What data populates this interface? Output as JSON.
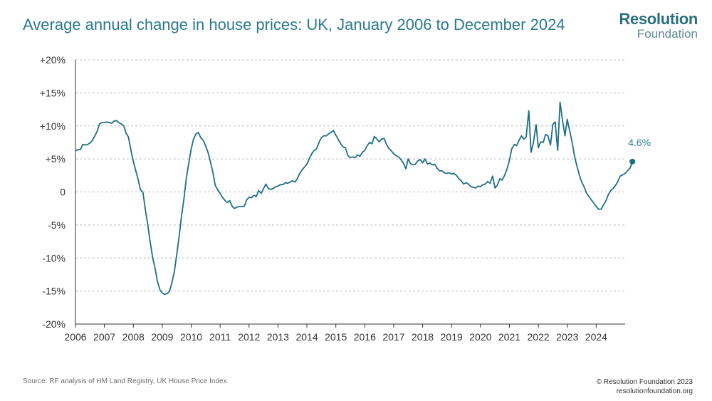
{
  "header": {
    "title": "Average annual change in house prices: UK, January 2006 to December 2024",
    "logo_top": "Resolution",
    "logo_bottom": "Foundation"
  },
  "footer": {
    "source": "Source: RF analysis of HM Land Registry, UK House Price Index.",
    "copyright": "© Resolution Foundation 2023",
    "website": "resolutionfoundation.org"
  },
  "colors": {
    "line": "#1e6f84",
    "grid": "#bdbdbd",
    "axis": "#333333",
    "title": "#2a7a8c"
  },
  "chart_data": {
    "type": "line",
    "title": "Average annual change in house prices: UK, January 2006 to December 2024",
    "xlabel": "",
    "ylabel": "",
    "ylim": [
      -20,
      20
    ],
    "xlim": [
      2006,
      2025
    ],
    "yticks": [
      20,
      15,
      10,
      5,
      0,
      -5,
      -10,
      -15,
      -20
    ],
    "ytick_labels": [
      "+20%",
      "+15%",
      "+10%",
      "+5%",
      "0",
      "-5%",
      "-10%",
      "-15%",
      "-20%"
    ],
    "xtick_labels": [
      "2006",
      "2007",
      "2008",
      "2009",
      "2010",
      "2011",
      "2012",
      "2013",
      "2014",
      "2015",
      "2016",
      "2017",
      "2018",
      "2019",
      "2020",
      "2021",
      "2022",
      "2023",
      "2024"
    ],
    "grid": "horizontal-dashed",
    "end_label": "4.6%",
    "series": [
      {
        "name": "Annual change in UK house prices (%)",
        "points": [
          [
            2006.0,
            6.2
          ],
          [
            2006.08,
            6.4
          ],
          [
            2006.17,
            6.4
          ],
          [
            2006.25,
            7.2
          ],
          [
            2006.33,
            7.1
          ],
          [
            2006.42,
            7.2
          ],
          [
            2006.5,
            7.4
          ],
          [
            2006.58,
            7.8
          ],
          [
            2006.67,
            8.5
          ],
          [
            2006.75,
            9.2
          ],
          [
            2006.83,
            10.3
          ],
          [
            2006.92,
            10.5
          ],
          [
            2007.0,
            10.5
          ],
          [
            2007.08,
            10.6
          ],
          [
            2007.17,
            10.5
          ],
          [
            2007.25,
            10.4
          ],
          [
            2007.33,
            10.7
          ],
          [
            2007.42,
            10.8
          ],
          [
            2007.5,
            10.5
          ],
          [
            2007.58,
            10.3
          ],
          [
            2007.67,
            10.0
          ],
          [
            2007.75,
            8.9
          ],
          [
            2007.83,
            8.3
          ],
          [
            2007.92,
            6.3
          ],
          [
            2008.0,
            4.6
          ],
          [
            2008.08,
            3.3
          ],
          [
            2008.17,
            1.8
          ],
          [
            2008.25,
            0.3
          ],
          [
            2008.33,
            0.0
          ],
          [
            2008.42,
            -2.8
          ],
          [
            2008.5,
            -5.0
          ],
          [
            2008.58,
            -7.5
          ],
          [
            2008.67,
            -10.0
          ],
          [
            2008.75,
            -11.5
          ],
          [
            2008.83,
            -13.5
          ],
          [
            2008.92,
            -14.8
          ],
          [
            2009.0,
            -15.3
          ],
          [
            2009.08,
            -15.5
          ],
          [
            2009.17,
            -15.4
          ],
          [
            2009.25,
            -15.0
          ],
          [
            2009.33,
            -13.8
          ],
          [
            2009.42,
            -12.0
          ],
          [
            2009.5,
            -9.5
          ],
          [
            2009.58,
            -6.8
          ],
          [
            2009.67,
            -3.5
          ],
          [
            2009.75,
            -1.0
          ],
          [
            2009.83,
            2.0
          ],
          [
            2009.92,
            4.5
          ],
          [
            2010.0,
            6.5
          ],
          [
            2010.08,
            8.0
          ],
          [
            2010.17,
            8.8
          ],
          [
            2010.25,
            9.0
          ],
          [
            2010.33,
            8.2
          ],
          [
            2010.42,
            7.8
          ],
          [
            2010.5,
            7.0
          ],
          [
            2010.58,
            6.0
          ],
          [
            2010.67,
            4.5
          ],
          [
            2010.75,
            3.0
          ],
          [
            2010.83,
            1.0
          ],
          [
            2010.92,
            0.3
          ],
          [
            2011.0,
            -0.2
          ],
          [
            2011.08,
            -0.8
          ],
          [
            2011.17,
            -1.3
          ],
          [
            2011.25,
            -1.6
          ],
          [
            2011.33,
            -1.3
          ],
          [
            2011.42,
            -2.2
          ],
          [
            2011.5,
            -2.5
          ],
          [
            2011.58,
            -2.3
          ],
          [
            2011.67,
            -2.2
          ],
          [
            2011.75,
            -2.2
          ],
          [
            2011.83,
            -2.2
          ],
          [
            2011.92,
            -1.2
          ],
          [
            2012.0,
            -0.8
          ],
          [
            2012.08,
            -0.9
          ],
          [
            2012.17,
            -0.5
          ],
          [
            2012.25,
            -0.7
          ],
          [
            2012.33,
            0.2
          ],
          [
            2012.42,
            -0.2
          ],
          [
            2012.5,
            0.5
          ],
          [
            2012.58,
            1.2
          ],
          [
            2012.67,
            0.5
          ],
          [
            2012.75,
            0.4
          ],
          [
            2012.83,
            0.5
          ],
          [
            2012.92,
            0.8
          ],
          [
            2013.0,
            0.9
          ],
          [
            2013.08,
            1.1
          ],
          [
            2013.17,
            1.1
          ],
          [
            2013.25,
            1.4
          ],
          [
            2013.33,
            1.3
          ],
          [
            2013.42,
            1.5
          ],
          [
            2013.5,
            1.7
          ],
          [
            2013.58,
            1.5
          ],
          [
            2013.67,
            2.0
          ],
          [
            2013.75,
            2.8
          ],
          [
            2013.83,
            3.3
          ],
          [
            2013.92,
            3.8
          ],
          [
            2014.0,
            4.2
          ],
          [
            2014.08,
            5.0
          ],
          [
            2014.17,
            5.8
          ],
          [
            2014.25,
            6.3
          ],
          [
            2014.33,
            6.5
          ],
          [
            2014.42,
            7.5
          ],
          [
            2014.5,
            8.2
          ],
          [
            2014.58,
            8.5
          ],
          [
            2014.67,
            8.5
          ],
          [
            2014.75,
            8.8
          ],
          [
            2014.83,
            9.0
          ],
          [
            2014.92,
            9.3
          ],
          [
            2015.0,
            8.6
          ],
          [
            2015.08,
            8.0
          ],
          [
            2015.17,
            7.3
          ],
          [
            2015.25,
            6.8
          ],
          [
            2015.33,
            6.7
          ],
          [
            2015.42,
            5.5
          ],
          [
            2015.5,
            5.2
          ],
          [
            2015.58,
            5.3
          ],
          [
            2015.67,
            5.2
          ],
          [
            2015.75,
            5.6
          ],
          [
            2015.83,
            5.4
          ],
          [
            2015.92,
            6.0
          ],
          [
            2016.0,
            6.3
          ],
          [
            2016.08,
            7.0
          ],
          [
            2016.17,
            7.5
          ],
          [
            2016.25,
            7.3
          ],
          [
            2016.33,
            8.4
          ],
          [
            2016.42,
            8.0
          ],
          [
            2016.5,
            7.6
          ],
          [
            2016.58,
            8.0
          ],
          [
            2016.67,
            8.1
          ],
          [
            2016.75,
            7.2
          ],
          [
            2016.83,
            6.6
          ],
          [
            2016.92,
            6.2
          ],
          [
            2017.0,
            5.8
          ],
          [
            2017.08,
            5.5
          ],
          [
            2017.17,
            5.3
          ],
          [
            2017.25,
            4.9
          ],
          [
            2017.33,
            4.4
          ],
          [
            2017.42,
            3.5
          ],
          [
            2017.5,
            5.0
          ],
          [
            2017.58,
            4.3
          ],
          [
            2017.67,
            4.1
          ],
          [
            2017.75,
            4.2
          ],
          [
            2017.83,
            4.7
          ],
          [
            2017.92,
            4.9
          ],
          [
            2018.0,
            4.4
          ],
          [
            2018.08,
            5.0
          ],
          [
            2018.17,
            4.2
          ],
          [
            2018.25,
            4.4
          ],
          [
            2018.33,
            4.1
          ],
          [
            2018.42,
            4.2
          ],
          [
            2018.5,
            3.6
          ],
          [
            2018.58,
            3.2
          ],
          [
            2018.67,
            3.2
          ],
          [
            2018.75,
            2.9
          ],
          [
            2018.83,
            2.8
          ],
          [
            2018.92,
            2.9
          ],
          [
            2019.0,
            2.7
          ],
          [
            2019.08,
            2.8
          ],
          [
            2019.17,
            2.5
          ],
          [
            2019.25,
            2.0
          ],
          [
            2019.33,
            1.7
          ],
          [
            2019.42,
            1.2
          ],
          [
            2019.5,
            1.4
          ],
          [
            2019.58,
            1.2
          ],
          [
            2019.67,
            0.8
          ],
          [
            2019.75,
            0.7
          ],
          [
            2019.83,
            0.6
          ],
          [
            2019.92,
            0.9
          ],
          [
            2020.0,
            0.8
          ],
          [
            2020.08,
            1.1
          ],
          [
            2020.17,
            1.2
          ],
          [
            2020.25,
            1.6
          ],
          [
            2020.33,
            1.3
          ],
          [
            2020.42,
            2.4
          ],
          [
            2020.5,
            0.6
          ],
          [
            2020.58,
            1.0
          ],
          [
            2020.67,
            2.0
          ],
          [
            2020.75,
            1.8
          ],
          [
            2020.83,
            2.5
          ],
          [
            2020.92,
            3.5
          ],
          [
            2021.0,
            4.8
          ],
          [
            2021.08,
            6.5
          ],
          [
            2021.17,
            7.2
          ],
          [
            2021.25,
            7.0
          ],
          [
            2021.33,
            7.8
          ],
          [
            2021.42,
            8.5
          ],
          [
            2021.5,
            8.0
          ],
          [
            2021.58,
            8.3
          ],
          [
            2021.67,
            12.3
          ],
          [
            2021.75,
            6.0
          ],
          [
            2021.83,
            7.5
          ],
          [
            2021.92,
            10.2
          ],
          [
            2022.0,
            6.7
          ],
          [
            2022.08,
            7.6
          ],
          [
            2022.17,
            7.5
          ],
          [
            2022.25,
            8.7
          ],
          [
            2022.33,
            8.5
          ],
          [
            2022.42,
            7.1
          ],
          [
            2022.5,
            10.2
          ],
          [
            2022.58,
            10.6
          ],
          [
            2022.67,
            6.3
          ],
          [
            2022.75,
            13.6
          ],
          [
            2022.83,
            11.0
          ],
          [
            2022.92,
            8.5
          ],
          [
            2023.0,
            11.0
          ],
          [
            2023.08,
            9.3
          ],
          [
            2023.17,
            7.5
          ],
          [
            2023.25,
            5.4
          ],
          [
            2023.33,
            4.0
          ],
          [
            2023.42,
            2.5
          ],
          [
            2023.5,
            1.5
          ],
          [
            2023.58,
            0.8
          ],
          [
            2023.67,
            -0.2
          ],
          [
            2023.75,
            -0.7
          ],
          [
            2023.83,
            -1.2
          ],
          [
            2023.92,
            -1.7
          ],
          [
            2024.0,
            -2.2
          ],
          [
            2024.08,
            -2.6
          ],
          [
            2024.17,
            -2.6
          ],
          [
            2024.25,
            -2.0
          ],
          [
            2024.33,
            -1.4
          ],
          [
            2024.42,
            -0.4
          ],
          [
            2024.5,
            0.2
          ],
          [
            2024.58,
            0.5
          ],
          [
            2024.67,
            1.0
          ],
          [
            2024.75,
            1.6
          ],
          [
            2024.83,
            2.4
          ],
          [
            2024.92,
            2.6
          ],
          [
            2025.0,
            2.8
          ],
          [
            2025.08,
            3.2
          ],
          [
            2025.17,
            3.6
          ],
          [
            2025.25,
            4.6
          ]
        ]
      }
    ]
  }
}
